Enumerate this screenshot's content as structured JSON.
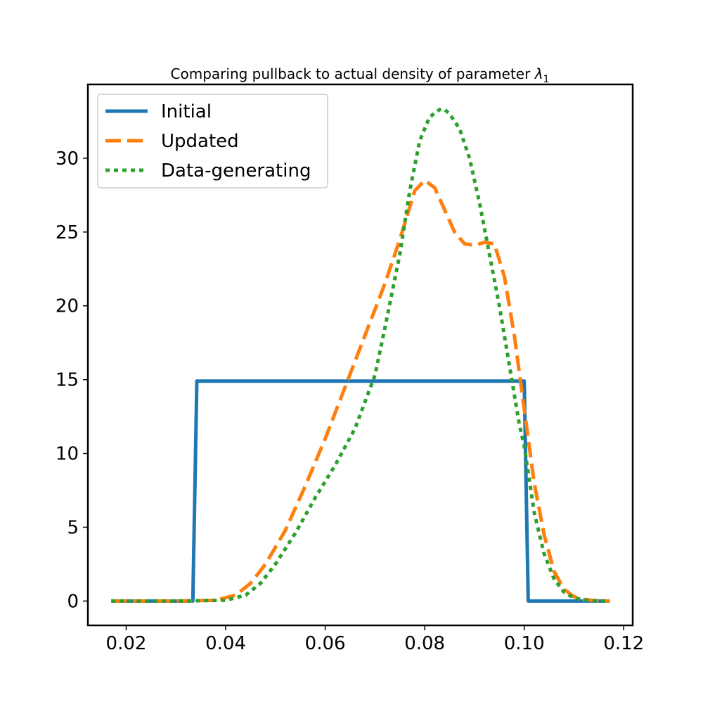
{
  "chart_data": {
    "type": "line",
    "title": "Comparing pullback to actual density of parameter ",
    "title_symbol": "λ",
    "title_subscript": "1",
    "xlabel": "",
    "ylabel": "",
    "xlim": [
      0.0123,
      0.1218
    ],
    "ylim": [
      -1.65,
      35.0
    ],
    "x_ticks": [
      0.02,
      0.04,
      0.06,
      0.08,
      0.1,
      0.12
    ],
    "x_tick_labels": [
      "0.02",
      "0.04",
      "0.06",
      "0.08",
      "0.10",
      "0.12"
    ],
    "y_ticks": [
      0,
      5,
      10,
      15,
      20,
      25,
      30
    ],
    "y_tick_labels": [
      "0",
      "5",
      "10",
      "15",
      "20",
      "25",
      "30"
    ],
    "grid": false,
    "legend_position": "top-left",
    "series": [
      {
        "name": "Initial",
        "style": "solid",
        "color": "#1f77b4",
        "x": [
          0.017,
          0.0334,
          0.0342,
          0.1,
          0.1008,
          0.1172
        ],
        "y": [
          0,
          0,
          14.9,
          14.9,
          0,
          0
        ]
      },
      {
        "name": "Updated",
        "style": "dashed",
        "color": "#ff7f0e",
        "x": [
          0.017,
          0.03,
          0.038,
          0.042,
          0.045,
          0.048,
          0.052,
          0.056,
          0.06,
          0.064,
          0.068,
          0.072,
          0.075,
          0.078,
          0.08,
          0.082,
          0.084,
          0.086,
          0.088,
          0.09,
          0.092,
          0.094,
          0.096,
          0.098,
          0.1,
          0.102,
          0.104,
          0.106,
          0.108,
          0.11,
          0.112,
          0.115,
          0.1172
        ],
        "y": [
          0,
          0,
          0.05,
          0.4,
          1.2,
          2.5,
          4.8,
          7.8,
          11.0,
          14.5,
          18.0,
          21.5,
          24.5,
          27.8,
          28.5,
          28.0,
          26.5,
          25.0,
          24.2,
          24.1,
          24.3,
          24.2,
          22.0,
          18.0,
          13.0,
          8.0,
          4.5,
          2.0,
          0.8,
          0.3,
          0.1,
          0.02,
          0
        ]
      },
      {
        "name": "Data-generating",
        "style": "dotted",
        "color": "#2ca02c",
        "x": [
          0.017,
          0.03,
          0.04,
          0.044,
          0.047,
          0.05,
          0.054,
          0.058,
          0.062,
          0.066,
          0.07,
          0.072,
          0.075,
          0.077,
          0.079,
          0.081,
          0.083,
          0.084,
          0.085,
          0.087,
          0.089,
          0.091,
          0.093,
          0.095,
          0.097,
          0.099,
          0.1,
          0.102,
          0.104,
          0.106,
          0.108,
          0.11,
          0.113,
          0.1172
        ],
        "y": [
          0,
          0,
          0.05,
          0.4,
          1.2,
          2.5,
          4.6,
          7.0,
          9.2,
          11.7,
          15.3,
          18.5,
          23.5,
          27.8,
          31.2,
          32.8,
          33.3,
          33.3,
          33.0,
          32.0,
          30.0,
          27.0,
          23.5,
          20.0,
          16.0,
          12.0,
          10.5,
          6.0,
          3.2,
          1.5,
          0.6,
          0.2,
          0.03,
          0
        ]
      }
    ]
  }
}
